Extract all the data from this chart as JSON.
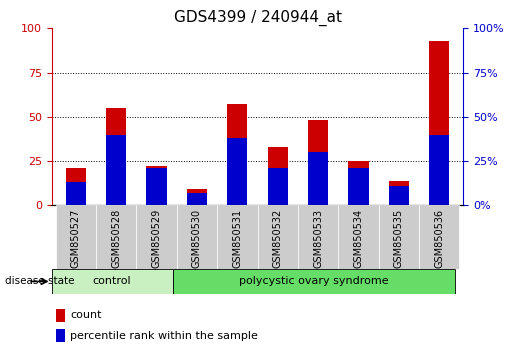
{
  "title": "GDS4399 / 240944_at",
  "samples": [
    "GSM850527",
    "GSM850528",
    "GSM850529",
    "GSM850530",
    "GSM850531",
    "GSM850532",
    "GSM850533",
    "GSM850534",
    "GSM850535",
    "GSM850536"
  ],
  "count_values": [
    21,
    55,
    22,
    9,
    57,
    33,
    48,
    25,
    14,
    93
  ],
  "percentile_values": [
    13,
    40,
    21,
    7,
    38,
    21,
    30,
    21,
    11,
    40
  ],
  "groups": [
    {
      "label": "control",
      "n": 3
    },
    {
      "label": "polycystic ovary syndrome",
      "n": 7
    }
  ],
  "ylim": [
    0,
    100
  ],
  "yticks": [
    0,
    25,
    50,
    75,
    100
  ],
  "count_color": "#cc0000",
  "percentile_color": "#0000cc",
  "bar_width": 0.5,
  "tick_label_fontsize": 7,
  "title_fontsize": 11,
  "label_area_color": "#cccccc",
  "control_bg": "#c8f0c0",
  "pcos_bg": "#66dd66",
  "disease_state_label": "disease state",
  "legend_count": "count",
  "legend_percentile": "percentile rank within the sample"
}
